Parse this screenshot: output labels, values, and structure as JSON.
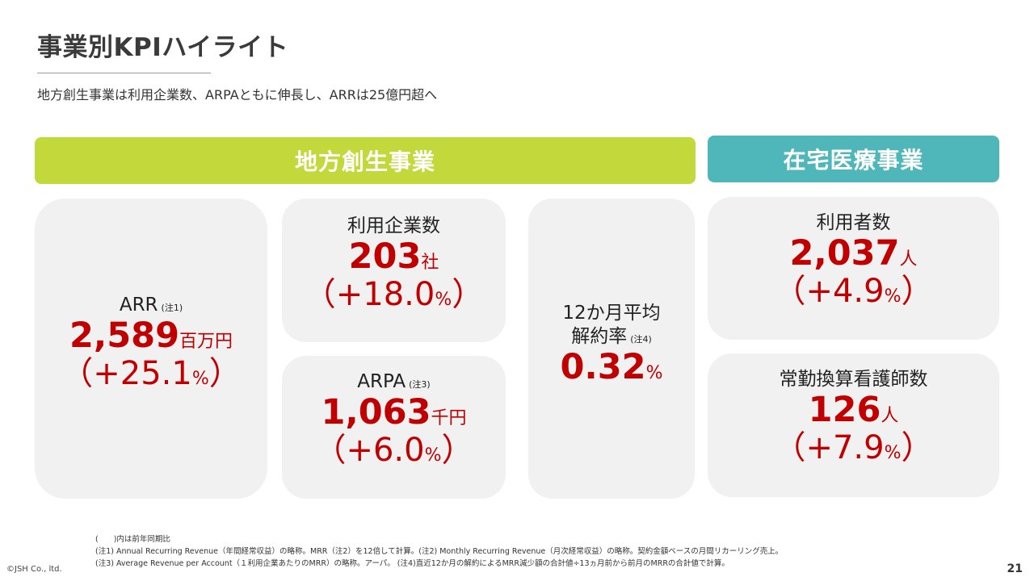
{
  "header": {
    "title": "事業別KPIハイライト",
    "subtitle": "地方創生事業は利用企業数、ARPAともに伸長し、ARRは25億円超へ"
  },
  "sections": {
    "regional": {
      "label": "地方創生事業",
      "color": "#c3d83a"
    },
    "homecare": {
      "label": "在宅医療事業",
      "color": "#4fb7b9"
    }
  },
  "kpis": {
    "arr": {
      "label": "ARR",
      "note": "(注1)",
      "value": "2,589",
      "unit": "百万円",
      "change_open": "（+25.1",
      "change_pct": "%",
      "change_close": "）"
    },
    "users": {
      "label": "利用企業数",
      "value": "203",
      "unit": "社",
      "change_open": "（+18.0",
      "change_pct": "%",
      "change_close": "）"
    },
    "arpa": {
      "label": "ARPA",
      "note": "(注3)",
      "value": "1,063",
      "unit": "千円",
      "change_open": "（+6.0",
      "change_pct": "%",
      "change_close": "）"
    },
    "churn": {
      "label_line1": "12か月平均",
      "label_line2": "解約率",
      "note": "(注4)",
      "value": "0.32",
      "unit": "%"
    },
    "patients": {
      "label": "利用者数",
      "value": "2,037",
      "unit": "人",
      "change_open": "（+4.9",
      "change_pct": "%",
      "change_close": "）"
    },
    "nurses": {
      "label": "常勤換算看護師数",
      "value": "126",
      "unit": "人",
      "change_open": "（+7.9",
      "change_pct": "%",
      "change_close": "）"
    }
  },
  "footnotes": {
    "line1": "(　　)内は前年同期比",
    "line2": "(注1) Annual Recurring Revenue（年間経常収益）の略称。MRR（注2）を12倍して計算。(注2) Monthly Recurring Revenue（月次経常収益）の略称。契約金額ベースの月間リカーリング売上。",
    "line3": "(注3) Average Revenue per Account（１利用企業あたりのMRR）の略称。アーパ。 (注4)直近12か月の解約によるMRR減少額の合計値÷13ヵ月前から前月のMRRの合計値で計算。"
  },
  "footer": {
    "copyright": "©JSH Co., ltd.",
    "page_number": "21"
  },
  "colors": {
    "accent_value": "#c00000",
    "card_bg": "#f1f1f1"
  }
}
